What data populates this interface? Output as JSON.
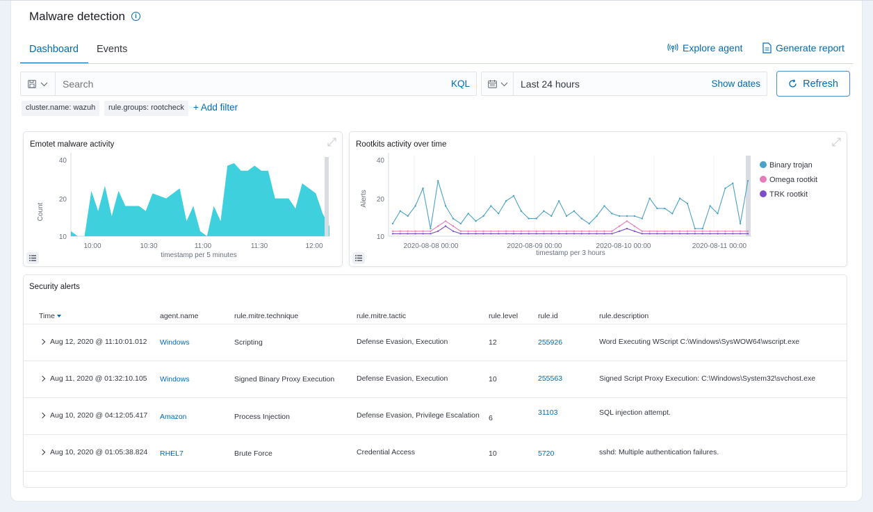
{
  "page": {
    "title": "Malware detection",
    "info_icon": "info-icon"
  },
  "tabs": [
    {
      "label": "Dashboard",
      "active": true
    },
    {
      "label": "Events",
      "active": false
    }
  ],
  "actions": {
    "explore_agent": "Explore agent",
    "generate_report": "Generate report"
  },
  "search": {
    "placeholder": "Search",
    "kql": "KQL"
  },
  "date": {
    "range": "Last 24 hours",
    "show_dates": "Show dates"
  },
  "refresh": "Refresh",
  "filters": [
    "cluster.name: wazuh",
    "rule.groups: rootcheck"
  ],
  "add_filter": "+ Add filter",
  "colors": {
    "accent": "#006bb8",
    "teal": "#3fd0dd",
    "binary": "#4aa2c4",
    "omega": "#e67db8",
    "trk": "#7b4dc8"
  },
  "charts": {
    "emotet": {
      "title": "Emotet malware activity",
      "ylabel": "Count",
      "xlabel": "timestamp per 5 minutes",
      "y_ticks": [
        "40",
        "20",
        "10"
      ],
      "x_ticks": [
        "10:00",
        "10:30",
        "11:00",
        "11:30",
        "12:00"
      ]
    },
    "rootkits": {
      "title": "Rootkits activity over time",
      "ylabel": "Alerts",
      "xlabel": "timestamp per 3 hours",
      "y_ticks": [
        "40",
        "20",
        "10"
      ],
      "x_ticks": [
        "2020-08-08 00:00",
        "2020-08-09 00:00",
        "2020-08-10 00:00",
        "2020-08-11 00:00"
      ],
      "legend": [
        "Binary trojan",
        "Omega rootkit",
        "TRK rootkit"
      ]
    }
  },
  "chart_data": [
    {
      "type": "area",
      "title": "Emotet malware activity",
      "xlabel": "timestamp per 5 minutes",
      "ylabel": "Count",
      "ylim": [
        10,
        42
      ],
      "x_ticks": [
        "10:00",
        "10:30",
        "11:00",
        "11:30",
        "12:00"
      ],
      "series": [
        {
          "values": [
            12,
            10,
            9,
            28,
            20,
            30,
            18,
            28,
            22,
            22,
            22,
            20,
            27,
            26,
            25,
            27,
            29,
            16,
            22,
            12,
            10,
            22,
            16,
            38,
            39,
            36,
            36,
            38,
            36,
            36,
            25,
            25,
            25,
            21,
            31,
            29,
            27,
            19,
            14
          ]
        }
      ]
    },
    {
      "type": "line",
      "title": "Rootkits activity over time",
      "xlabel": "timestamp per 3 hours",
      "ylabel": "Alerts",
      "ylim": [
        10,
        42
      ],
      "x_ticks": [
        "2020-08-08 00:00",
        "2020-08-09 00:00",
        "2020-08-10 00:00",
        "2020-08-11 00:00"
      ],
      "series": [
        {
          "name": "Binary trojan",
          "values": [
            15,
            20,
            18,
            22,
            29,
            13,
            32,
            22,
            17,
            15,
            19,
            16,
            18,
            22,
            19,
            24,
            26,
            20,
            17,
            17,
            20,
            18,
            24,
            18,
            20,
            17,
            15,
            18,
            22,
            19,
            18,
            18,
            18,
            17,
            25,
            21,
            21,
            19,
            25,
            23,
            13,
            13,
            22,
            19,
            29,
            31,
            15,
            32
          ]
        },
        {
          "name": "Omega rootkit",
          "values": [
            12,
            12,
            12,
            12,
            12,
            12,
            14,
            16,
            14,
            12,
            12,
            12,
            12,
            12,
            12,
            12,
            12,
            12,
            12,
            12,
            12,
            12,
            12,
            12,
            12,
            12,
            12,
            12,
            12,
            12,
            14,
            16,
            14,
            12,
            12,
            12,
            12,
            12,
            12,
            12,
            12,
            12,
            12,
            12,
            12,
            12,
            12,
            12
          ]
        },
        {
          "name": "TRK rootkit",
          "values": [
            11,
            11,
            11,
            11,
            11,
            11,
            12,
            14,
            12,
            11,
            11,
            11,
            11,
            11,
            11,
            11,
            11,
            11,
            11,
            11,
            11,
            11,
            11,
            11,
            11,
            11,
            11,
            11,
            11,
            11,
            12,
            13,
            12,
            11,
            11,
            11,
            11,
            11,
            11,
            11,
            11,
            11,
            11,
            11,
            11,
            11,
            11,
            11
          ]
        }
      ]
    }
  ],
  "alerts": {
    "title": "Security alerts",
    "columns": [
      "Time",
      "agent.name",
      "rule.mitre.technique",
      "rule.mitre.tactic",
      "rule.level",
      "rule.id",
      "rule.description"
    ],
    "rows": [
      {
        "time": "Aug 12, 2020 @ 11:10:01.012",
        "agent": "Windows",
        "technique": "Scripting",
        "tactic": "Defense Evasion, Execution",
        "level": "12",
        "id": "255926",
        "description": "Word Executing WScript C:\\Windows\\SysWOW64\\wscript.exe"
      },
      {
        "time": "Aug 11, 2020 @ 01:32:10.105",
        "agent": "Windows",
        "technique": "Signed Binary Proxy Execution",
        "tactic": "Defense Evasion, Execution",
        "level": "10",
        "id": "255563",
        "description": "Signed Script Proxy Execution: C:\\Windows\\System32\\svchost.exe"
      },
      {
        "time": "Aug 10, 2020 @ 04:12:05.417",
        "agent": "Amazon",
        "technique": "Process Injection",
        "tactic": "Defense Evasion, Privilege Escalation",
        "level": "6",
        "id": "31103",
        "description": "SQL injection attempt."
      },
      {
        "time": "Aug 10, 2020 @ 01:05:38.824",
        "agent": "RHEL7",
        "technique": "Brute Force",
        "tactic": "Credential Access",
        "level": "10",
        "id": "5720",
        "description": "sshd: Multiple authentication failures."
      }
    ]
  }
}
